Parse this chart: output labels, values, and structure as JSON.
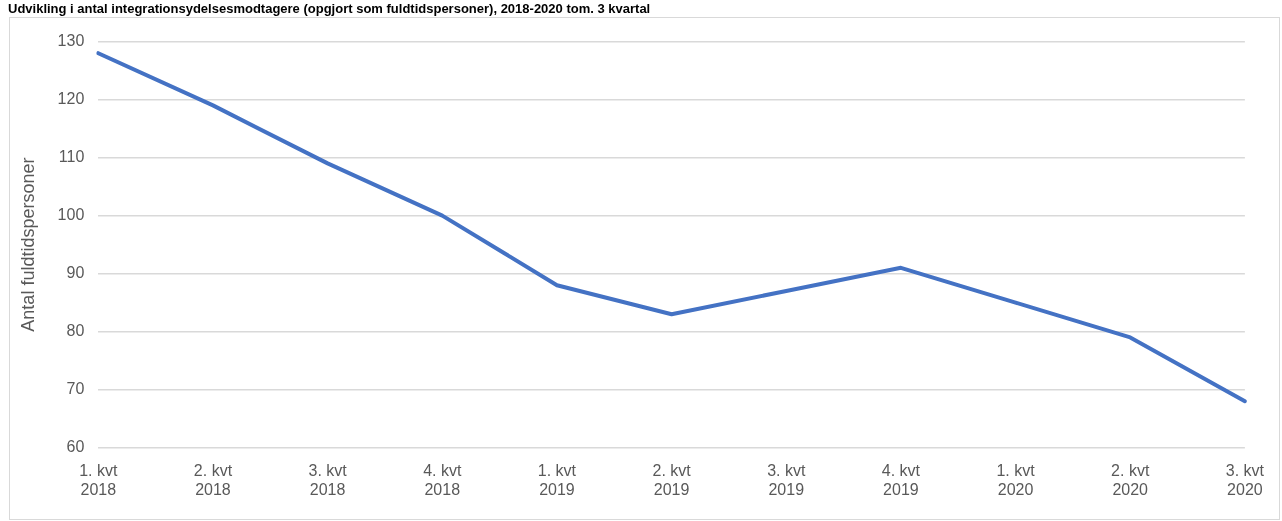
{
  "chart_data": {
    "type": "line",
    "title": "Udvikling i antal integrationsydelsesmodtagere (opgjort som fuldtidspersoner), 2018-2020 tom. 3 kvartal",
    "ylabel": "Antal fuldtidspersoner",
    "categories": [
      "1. kvt 2018",
      "2. kvt 2018",
      "3. kvt 2018",
      "4. kvt 2018",
      "1. kvt 2019",
      "2. kvt 2019",
      "3. kvt 2019",
      "4. kvt 2019",
      "1. kvt 2020",
      "2. kvt 2020",
      "3. kvt 2020"
    ],
    "series": [
      {
        "color": "#4472c4",
        "values": [
          128,
          119,
          109,
          100,
          88,
          83,
          87,
          91,
          85,
          79,
          68
        ]
      }
    ],
    "ylim": [
      60,
      130
    ],
    "yticks": [
      60,
      70,
      80,
      90,
      100,
      110,
      120,
      130
    ],
    "grid": "y",
    "legend": false,
    "marker": "none",
    "line_style": "solid"
  }
}
